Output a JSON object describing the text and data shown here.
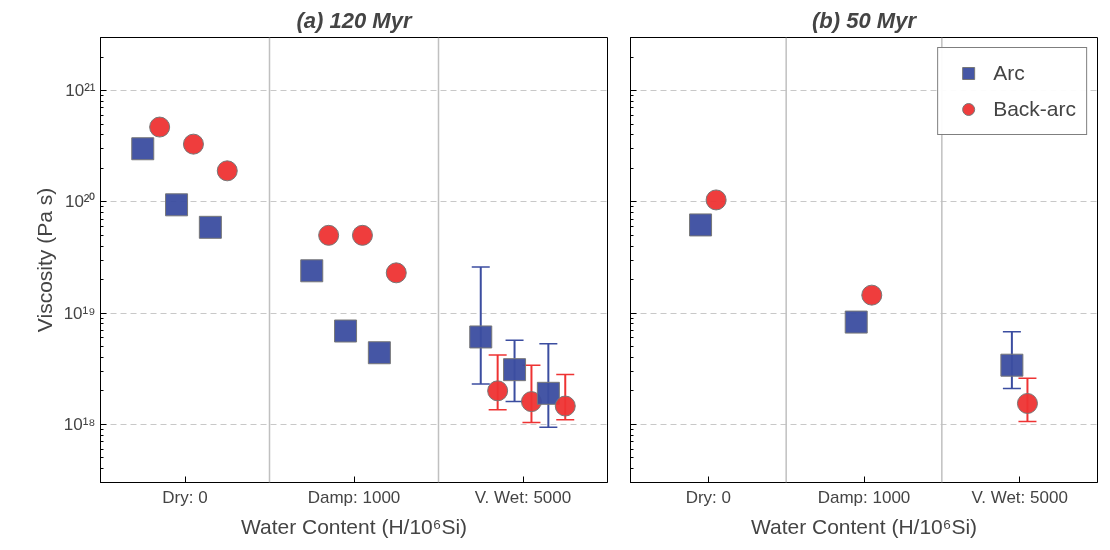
{
  "chart_data": [
    {
      "type": "scatter",
      "title": "(a) 120 Myr",
      "xlabel": "Water Content (H/10⁶Si)",
      "ylabel": "Viscosity (Pa s)",
      "log": "y",
      "grid": "y",
      "legend": false,
      "categories": [
        "Dry: 0",
        "Damp: 1000",
        "V. Wet: 5000"
      ],
      "ylim": [
        3e+17,
        3e+21
      ],
      "yticks": [
        {
          "value": 1e+18,
          "label": "10¹⁸"
        },
        {
          "value": 1e+19,
          "label": "10¹⁹"
        },
        {
          "value": 1e+20,
          "label": "10²⁰"
        },
        {
          "value": 1e+21,
          "label": "10²¹"
        }
      ],
      "series": [
        {
          "color": "#3b4da0",
          "marker": "square",
          "values": [
            3e+20,
            2.4e+19,
            6.1e+18
          ],
          "errors": [
            null,
            null,
            [
              2.3e+18,
              2.6e+19
            ]
          ]
        },
        {
          "color": "#ee3333",
          "marker": "circle",
          "values": [
            4.7e+20,
            5e+19,
            2e+18
          ],
          "errors": [
            null,
            null,
            [
              1.35e+18,
              4.2e+18
            ]
          ]
        },
        {
          "color": "#3b4da0",
          "marker": "square",
          "values": [
            9.4e+19,
            6.9e+18,
            3.1e+18
          ],
          "errors": [
            null,
            null,
            [
              1.6e+18,
              5.7e+18
            ]
          ]
        },
        {
          "color": "#ee3333",
          "marker": "circle",
          "values": [
            3.3e+20,
            5e+19,
            1.6e+18
          ],
          "errors": [
            null,
            null,
            [
              1.04e+18,
              3.4e+18
            ]
          ]
        },
        {
          "color": "#3b4da0",
          "marker": "square",
          "values": [
            5.9e+19,
            4.4e+18,
            1.9e+18
          ],
          "errors": [
            null,
            null,
            [
              9.4e+17,
              5.3e+18
            ]
          ]
        },
        {
          "color": "#ee3333",
          "marker": "circle",
          "values": [
            1.9e+20,
            2.3e+19,
            1.46e+18
          ],
          "errors": [
            null,
            null,
            [
              1.1e+18,
              2.8e+18
            ]
          ]
        }
      ]
    },
    {
      "type": "scatter",
      "title": "(b) 50 Myr",
      "xlabel": "Water Content (H/10⁶Si)",
      "log": "y",
      "grid": "y",
      "legend": "top right",
      "tick_labels": "x",
      "categories": [
        "Dry: 0",
        "Damp: 1000",
        "V. Wet: 5000"
      ],
      "ylim": [
        3e+17,
        3e+21
      ],
      "yticks": [
        {
          "value": 1e+18,
          "label": null
        },
        {
          "value": 1e+19,
          "label": null
        },
        {
          "value": 1e+20,
          "label": null
        },
        {
          "value": 1e+21,
          "label": null
        }
      ],
      "series": [
        {
          "name": "Arc",
          "color": "#3b4da0",
          "marker": "square",
          "values": [
            6.2e+19,
            8.3e+18,
            3.4e+18
          ],
          "errors": [
            null,
            null,
            [
              2.1e+18,
              6.8e+18
            ]
          ]
        },
        {
          "name": "Back-arc",
          "color": "#ee3333",
          "marker": "circle",
          "values": [
            1.04e+20,
            1.45e+19,
            1.54e+18
          ],
          "errors": [
            null,
            null,
            [
              1.06e+18,
              2.6e+18
            ]
          ]
        }
      ]
    }
  ]
}
